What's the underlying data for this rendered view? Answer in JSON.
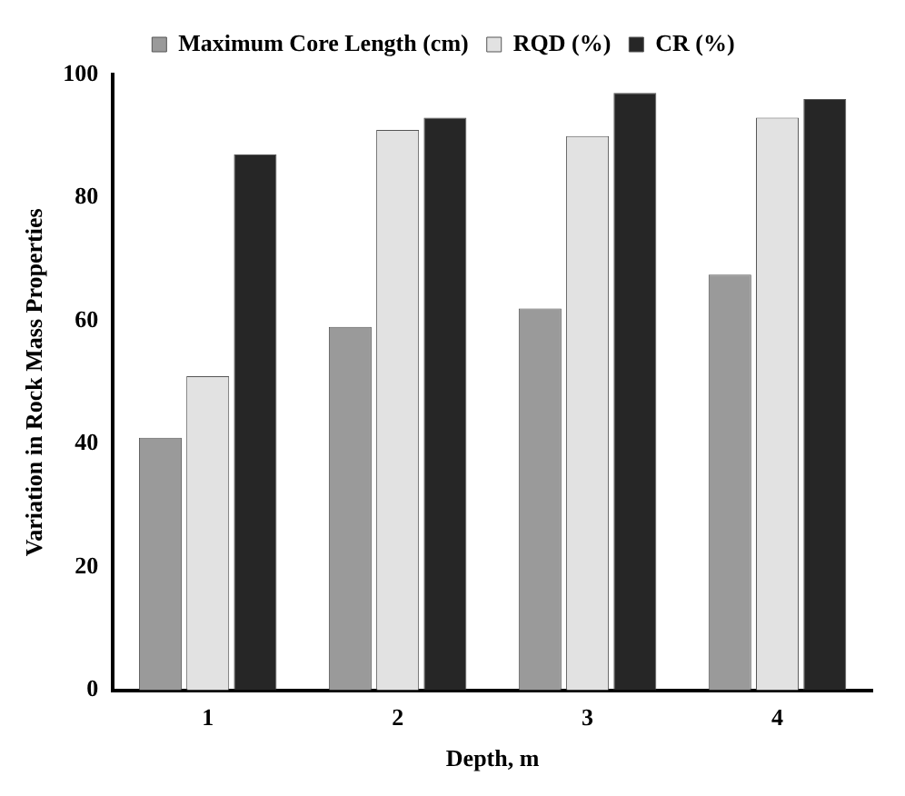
{
  "chart_data": {
    "type": "bar",
    "xlabel": "Depth, m",
    "ylabel": "Variation in Rock Mass Properties",
    "categories": [
      "1",
      "2",
      "3",
      "4"
    ],
    "series": [
      {
        "name": "Maximum Core Length (cm)",
        "color": "#9a9a9a",
        "values": [
          41,
          59,
          62,
          67.5
        ]
      },
      {
        "name": "RQD (%)",
        "color": "#e2e2e2",
        "values": [
          51,
          91,
          90,
          93
        ]
      },
      {
        "name": "CR (%)",
        "color": "#262626",
        "values": [
          87,
          93,
          97,
          96
        ]
      }
    ],
    "ylim": [
      0,
      100
    ],
    "yticks": [
      0,
      20,
      40,
      60,
      80,
      100
    ],
    "grid": false,
    "legend": "top"
  }
}
